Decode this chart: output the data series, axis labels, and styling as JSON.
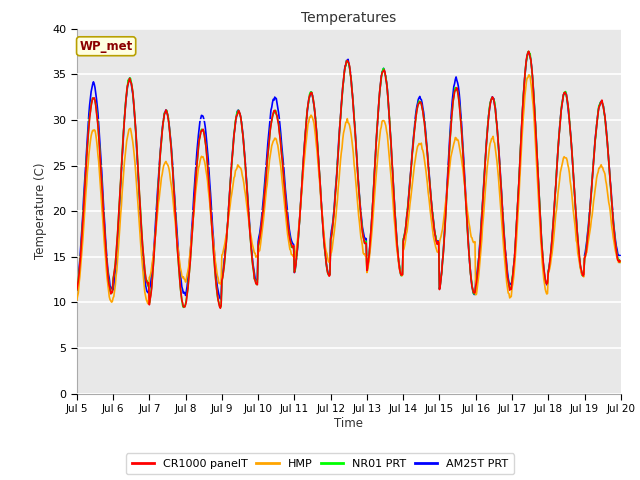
{
  "title": "Temperatures",
  "ylabel": "Temperature (C)",
  "xlabel": "Time",
  "annotation": "WP_met",
  "xlim_start": 0,
  "xlim_end": 360,
  "ylim": [
    0,
    40
  ],
  "yticks": [
    0,
    5,
    10,
    15,
    20,
    25,
    30,
    35,
    40
  ],
  "xtick_labels": [
    "Jul 5",
    "Jul 6",
    "Jul 7",
    "Jul 8",
    "Jul 9",
    "Jul 10",
    "Jul 11",
    "Jul 12",
    "Jul 13",
    "Jul 14",
    "Jul 15",
    "Jul 16",
    "Jul 17",
    "Jul 18",
    "Jul 19",
    "Jul 20"
  ],
  "xtick_positions": [
    0,
    24,
    48,
    72,
    96,
    120,
    144,
    168,
    192,
    216,
    240,
    264,
    288,
    312,
    336,
    360
  ],
  "series_colors": [
    "red",
    "orange",
    "lime",
    "blue"
  ],
  "series_labels": [
    "CR1000 panelT",
    "HMP",
    "NR01 PRT",
    "AM25T PRT"
  ],
  "series_lw": [
    1.2,
    1.2,
    1.2,
    1.2
  ],
  "bg_color": "#e8e8e8",
  "grid_color": "white",
  "daily_min_cr1000": [
    11,
    12,
    9.5,
    9.5,
    12,
    16,
    13,
    16.5,
    13,
    16.5,
    11,
    11.5,
    12,
    13,
    14.5
  ],
  "daily_min_hmp": [
    10,
    10,
    12.5,
    12,
    15,
    15,
    14.5,
    15,
    13,
    15.5,
    16.5,
    10.5,
    11,
    13,
    14.5
  ],
  "daily_min_nro": [
    11,
    12,
    9.5,
    9.5,
    12,
    16,
    13,
    16.5,
    13,
    16.5,
    11,
    11.5,
    12,
    13,
    14.5
  ],
  "daily_min_am25": [
    11.5,
    11,
    11,
    10.5,
    12.5,
    16.5,
    13,
    17,
    13,
    16.5,
    11,
    12,
    12,
    13,
    15
  ],
  "daily_max_cr1000": [
    32.5,
    34.5,
    31,
    29,
    31,
    31,
    33,
    36.5,
    35.5,
    32,
    33.5,
    32.5,
    37.5,
    33,
    32
  ],
  "daily_max_hmp": [
    29,
    29,
    25.5,
    26,
    25,
    28,
    30.5,
    30,
    30,
    27.5,
    28,
    28,
    35,
    26,
    25
  ],
  "daily_max_nro": [
    32.5,
    34.5,
    31,
    29,
    31,
    31,
    33,
    36.5,
    35.5,
    32,
    33.5,
    32.5,
    37.5,
    33,
    32
  ],
  "daily_max_am25": [
    34,
    34.5,
    31,
    30.5,
    31,
    32.5,
    33,
    36.5,
    35.5,
    32.5,
    34.5,
    32.5,
    37.5,
    33,
    32
  ]
}
